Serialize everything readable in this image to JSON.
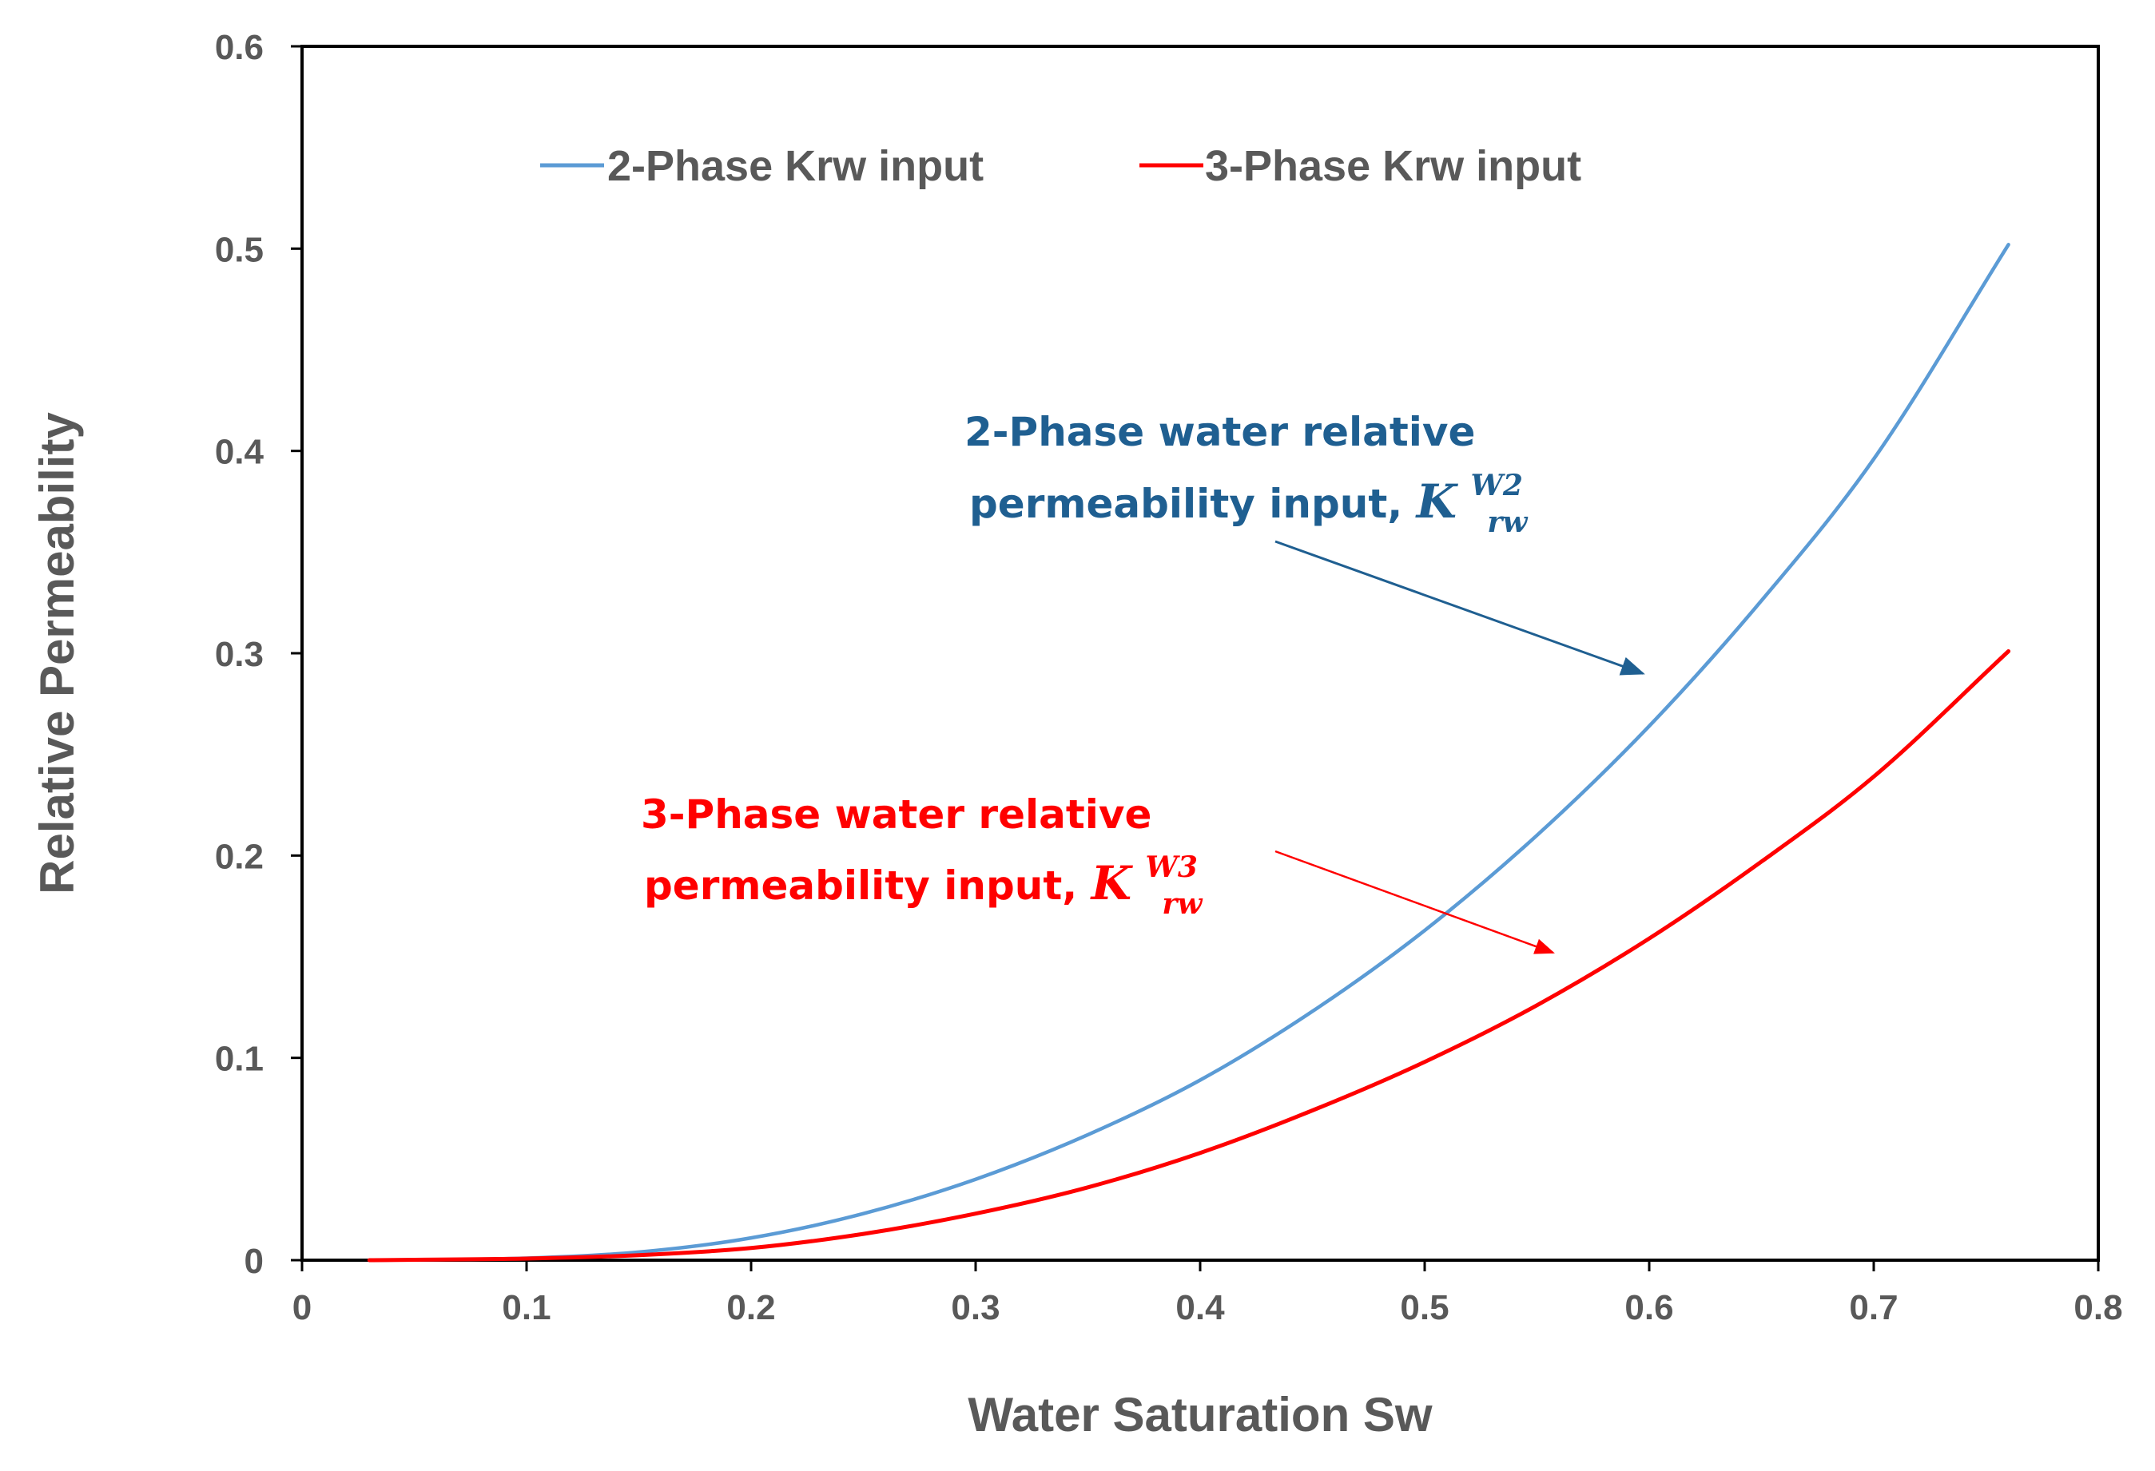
{
  "chart_data": {
    "type": "line",
    "title": "",
    "xlabel": "Water Saturation Sw",
    "ylabel": "Relative Permeability",
    "xlim": [
      0,
      0.8
    ],
    "ylim": [
      0,
      0.6
    ],
    "xticks": [
      "0",
      "0.1",
      "0.2",
      "0.3",
      "0.4",
      "0.5",
      "0.6",
      "0.7",
      "0.8"
    ],
    "yticks": [
      "0",
      "0.1",
      "0.2",
      "0.3",
      "0.4",
      "0.5",
      "0.6"
    ],
    "grid": false,
    "legend_position": "top",
    "series": [
      {
        "name": "2-Phase Krw input",
        "color": "#5b9bd5",
        "x": [
          0.03,
          0.1,
          0.15,
          0.2,
          0.25,
          0.3,
          0.35,
          0.4,
          0.45,
          0.5,
          0.55,
          0.6,
          0.65,
          0.7,
          0.76
        ],
        "y": [
          0.0,
          0.001,
          0.004,
          0.011,
          0.023,
          0.04,
          0.062,
          0.089,
          0.123,
          0.163,
          0.21,
          0.264,
          0.326,
          0.396,
          0.502
        ]
      },
      {
        "name": "3-Phase Krw input",
        "color": "#ff0000",
        "x": [
          0.03,
          0.1,
          0.15,
          0.2,
          0.25,
          0.3,
          0.35,
          0.4,
          0.45,
          0.5,
          0.55,
          0.6,
          0.65,
          0.7,
          0.76
        ],
        "y": [
          0.0,
          0.0008,
          0.0025,
          0.006,
          0.013,
          0.023,
          0.036,
          0.053,
          0.074,
          0.098,
          0.126,
          0.159,
          0.197,
          0.239,
          0.301
        ]
      }
    ],
    "annotations": [
      {
        "line1": "2-Phase water relative",
        "line2": "permeability input, ",
        "symbol": "K",
        "sup": "W2",
        "sub": "rw",
        "color": "#1f5f91",
        "arrow_to": [
          0.6,
          0.29
        ]
      },
      {
        "line1": "3-Phase water relative",
        "line2": "permeability input, ",
        "symbol": "K",
        "sup": "W3",
        "sub": "rw",
        "color": "#ff0000",
        "arrow_to": [
          0.56,
          0.152
        ]
      }
    ]
  }
}
